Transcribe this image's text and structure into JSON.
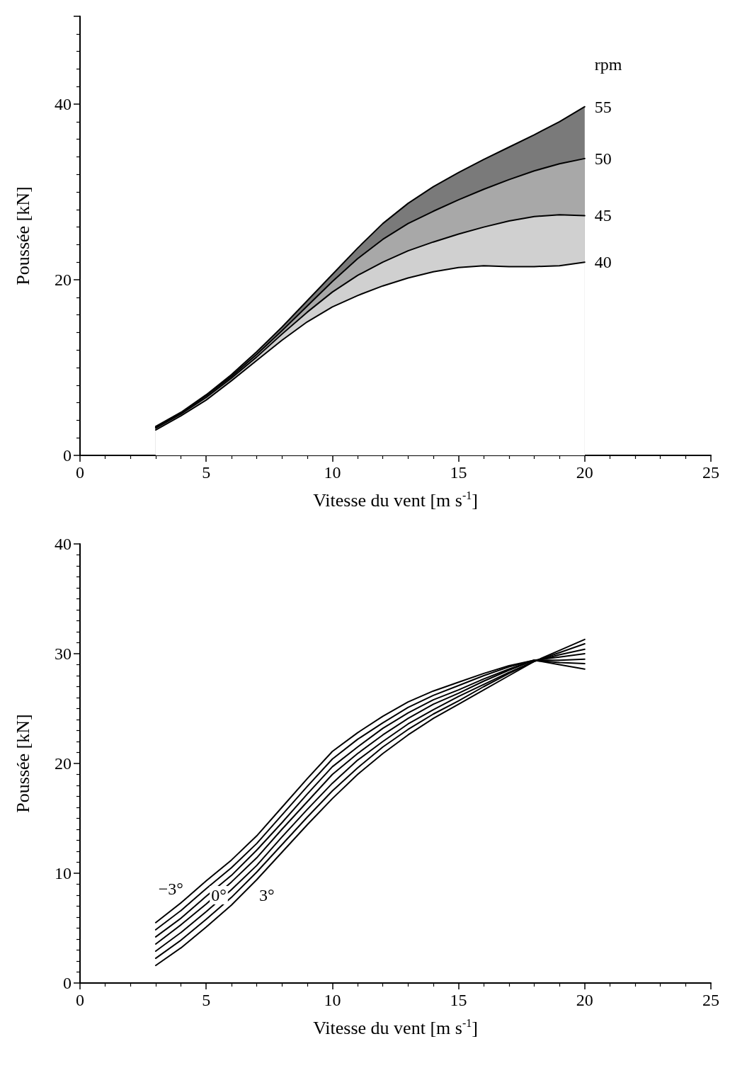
{
  "chart_data": [
    {
      "type": "area",
      "xlabel": "Vitesse du vent [m s$^{-1}$]",
      "ylabel": "Poussée [kN]",
      "legend_title": "rpm",
      "x": [
        3,
        4,
        5,
        6,
        7,
        8,
        9,
        10,
        11,
        12,
        13,
        14,
        15,
        16,
        17,
        18,
        19,
        20
      ],
      "xlim": [
        0,
        25
      ],
      "xticks": [
        0,
        5,
        10,
        15,
        20,
        25
      ],
      "ylim": [
        0,
        50
      ],
      "yticks": [
        0,
        20,
        40
      ],
      "grid": false,
      "legend": false,
      "series": [
        {
          "name": "55",
          "color": "#7a7a7a",
          "values": [
            3.3,
            4.9,
            6.9,
            9.2,
            11.8,
            14.6,
            17.6,
            20.6,
            23.6,
            26.4,
            28.7,
            30.6,
            32.2,
            33.7,
            35.1,
            36.5,
            38.0,
            39.7
          ]
        },
        {
          "name": "50",
          "color": "#a8a8a8",
          "values": [
            3.2,
            4.8,
            6.8,
            9.0,
            11.5,
            14.2,
            17.0,
            19.8,
            22.4,
            24.6,
            26.4,
            27.8,
            29.1,
            30.3,
            31.4,
            32.4,
            33.2,
            33.8
          ]
        },
        {
          "name": "45",
          "color": "#d0d0d0",
          "values": [
            3.1,
            4.7,
            6.6,
            8.8,
            11.2,
            13.8,
            16.3,
            18.6,
            20.5,
            22.0,
            23.3,
            24.3,
            25.2,
            26.0,
            26.7,
            27.2,
            27.4,
            27.3
          ]
        },
        {
          "name": "40",
          "color": "#ffffff",
          "values": [
            2.9,
            4.5,
            6.3,
            8.5,
            10.8,
            13.1,
            15.2,
            16.9,
            18.2,
            19.3,
            20.2,
            20.9,
            21.4,
            21.6,
            21.5,
            21.5,
            21.6,
            22.0
          ]
        }
      ]
    },
    {
      "type": "line",
      "xlabel": "Vitesse du vent [m s$^{-1}$]",
      "ylabel": "Poussée [kN]",
      "x": [
        3,
        4,
        5,
        6,
        7,
        8,
        9,
        10,
        11,
        12,
        13,
        14,
        15,
        16,
        17,
        18,
        19,
        20
      ],
      "xlim": [
        0,
        25
      ],
      "xticks": [
        0,
        5,
        10,
        15,
        20,
        25
      ],
      "ylim": [
        0,
        40
      ],
      "yticks": [
        0,
        10,
        20,
        30,
        40
      ],
      "grid": false,
      "legend": false,
      "marker": "none",
      "annotations": [
        {
          "text": "−3°",
          "x": 3.6,
          "y": 8.6
        },
        {
          "text": "0°",
          "x": 5.5,
          "y": 8.0
        },
        {
          "text": "3°",
          "x": 7.4,
          "y": 8.0
        }
      ],
      "series": [
        {
          "color": "#000000",
          "values": [
            5.5,
            7.3,
            9.3,
            11.2,
            13.4,
            16.0,
            18.6,
            21.1,
            22.8,
            24.3,
            25.6,
            26.6,
            27.4,
            28.2,
            28.9,
            29.4,
            29.0,
            28.6
          ]
        },
        {
          "color": "#000000",
          "values": [
            4.85,
            6.6,
            8.6,
            10.5,
            12.7,
            15.3,
            17.9,
            20.4,
            22.2,
            23.7,
            25.1,
            26.2,
            27.1,
            28.0,
            28.8,
            29.4,
            29.2,
            29.1
          ]
        },
        {
          "color": "#000000",
          "values": [
            4.2,
            5.9,
            7.9,
            9.8,
            12.1,
            14.6,
            17.2,
            19.7,
            21.5,
            23.2,
            24.6,
            25.8,
            26.7,
            27.7,
            28.6,
            29.4,
            29.4,
            29.5
          ]
        },
        {
          "color": "#000000",
          "values": [
            3.55,
            5.3,
            7.2,
            9.2,
            11.4,
            14.0,
            16.5,
            19.0,
            20.9,
            22.6,
            24.1,
            25.4,
            26.4,
            27.5,
            28.5,
            29.4,
            29.7,
            30.0
          ]
        },
        {
          "color": "#000000",
          "values": [
            2.9,
            4.6,
            6.5,
            8.5,
            10.7,
            13.3,
            15.8,
            18.2,
            20.3,
            22.0,
            23.6,
            24.9,
            26.1,
            27.2,
            28.3,
            29.3,
            29.9,
            30.4
          ]
        },
        {
          "color": "#000000",
          "values": [
            2.25,
            3.9,
            5.8,
            7.8,
            10.1,
            12.6,
            15.1,
            17.5,
            19.6,
            21.5,
            23.1,
            24.5,
            25.7,
            27.0,
            28.2,
            29.3,
            30.1,
            30.9
          ]
        },
        {
          "color": "#000000",
          "values": [
            1.6,
            3.2,
            5.1,
            7.1,
            9.4,
            11.9,
            14.4,
            16.8,
            19.0,
            20.9,
            22.6,
            24.1,
            25.4,
            26.7,
            28.0,
            29.3,
            30.3,
            31.3
          ]
        }
      ]
    }
  ]
}
